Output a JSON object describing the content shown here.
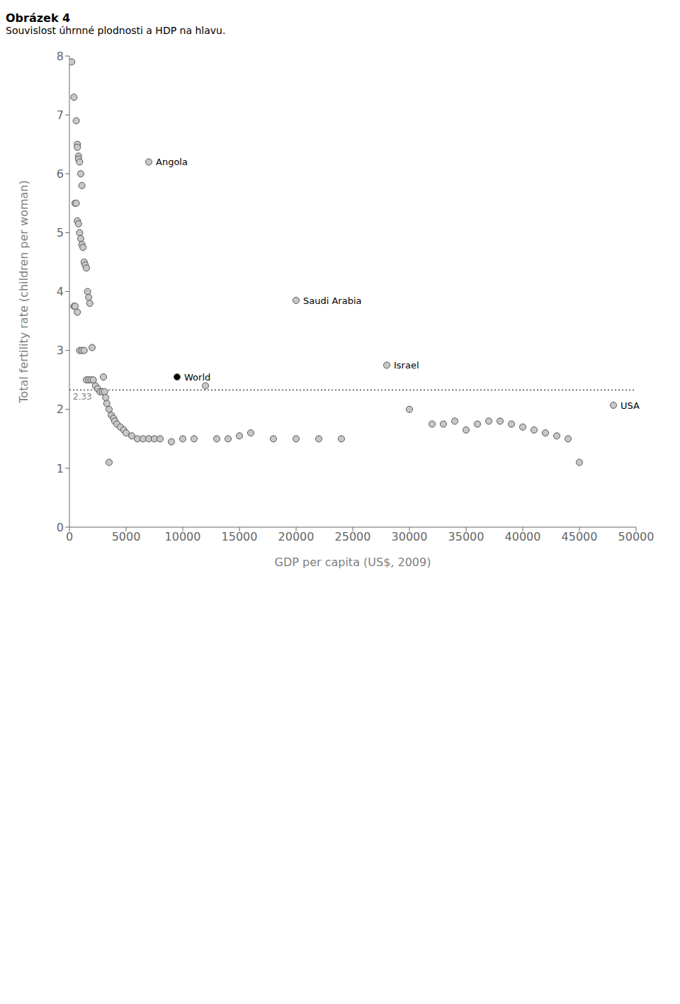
{
  "chart_data": {
    "type": "scatter",
    "title": "Obrázek 4",
    "subtitle": "Souvislost úhrnné plodnosti a HDP na hlavu.",
    "x_label": "GDP per capita (US$, 2009)",
    "y_label": "Total fertility rate (children per woman)",
    "xlim": [
      0,
      50000
    ],
    "ylim": [
      0,
      8
    ],
    "xticks": [
      0,
      5000,
      10000,
      15000,
      20000,
      25000,
      30000,
      35000,
      40000,
      45000,
      50000
    ],
    "yticks": [
      0,
      1,
      2,
      3,
      4,
      5,
      6,
      7,
      8
    ],
    "grid": false,
    "series": [
      {
        "color": "#c8c8c8",
        "points": [
          [
            200,
            7.9
          ],
          [
            400,
            7.3
          ],
          [
            600,
            6.9
          ],
          [
            700,
            6.5
          ],
          [
            700,
            6.45
          ],
          [
            800,
            6.3
          ],
          [
            800,
            6.25
          ],
          [
            900,
            6.2
          ],
          [
            1000,
            6.0
          ],
          [
            1100,
            5.8
          ],
          [
            500,
            5.5
          ],
          [
            600,
            5.5
          ],
          [
            700,
            5.2
          ],
          [
            800,
            5.15
          ],
          [
            900,
            5.0
          ],
          [
            1000,
            4.9
          ],
          [
            1100,
            4.8
          ],
          [
            1200,
            4.75
          ],
          [
            1300,
            4.5
          ],
          [
            1400,
            4.45
          ],
          [
            1500,
            4.4
          ],
          [
            1600,
            4.0
          ],
          [
            1700,
            3.9
          ],
          [
            1800,
            3.8
          ],
          [
            400,
            3.75
          ],
          [
            500,
            3.75
          ],
          [
            700,
            3.65
          ],
          [
            900,
            3.0
          ],
          [
            1100,
            3.0
          ],
          [
            1300,
            3.0
          ],
          [
            1500,
            2.5
          ],
          [
            1700,
            2.5
          ],
          [
            1900,
            2.5
          ],
          [
            2100,
            2.5
          ],
          [
            2300,
            2.4
          ],
          [
            2500,
            2.35
          ],
          [
            2700,
            2.3
          ],
          [
            2900,
            2.3
          ],
          [
            3000,
            2.55
          ],
          [
            3100,
            2.3
          ],
          [
            3200,
            2.2
          ],
          [
            3300,
            2.1
          ],
          [
            3500,
            2.0
          ],
          [
            3700,
            1.9
          ],
          [
            3900,
            1.85
          ],
          [
            4000,
            1.8
          ],
          [
            4200,
            1.75
          ],
          [
            4500,
            1.7
          ],
          [
            4800,
            1.65
          ],
          [
            5000,
            1.6
          ],
          [
            5500,
            1.55
          ],
          [
            6000,
            1.5
          ],
          [
            6500,
            1.5
          ],
          [
            7000,
            1.5
          ],
          [
            7500,
            1.5
          ],
          [
            8000,
            1.5
          ],
          [
            9000,
            1.45
          ],
          [
            10000,
            1.5
          ],
          [
            11000,
            1.5
          ],
          [
            13000,
            1.5
          ],
          [
            14000,
            1.5
          ],
          [
            15000,
            1.55
          ],
          [
            16000,
            1.6
          ],
          [
            18000,
            1.5
          ],
          [
            20000,
            1.5
          ],
          [
            22000,
            1.5
          ],
          [
            24000,
            1.5
          ],
          [
            30000,
            2.0
          ],
          [
            32000,
            1.75
          ],
          [
            33000,
            1.75
          ],
          [
            34000,
            1.8
          ],
          [
            35000,
            1.65
          ],
          [
            36000,
            1.75
          ],
          [
            37000,
            1.8
          ],
          [
            38000,
            1.8
          ],
          [
            39000,
            1.75
          ],
          [
            40000,
            1.7
          ],
          [
            41000,
            1.65
          ],
          [
            42000,
            1.6
          ],
          [
            43000,
            1.55
          ],
          [
            44000,
            1.5
          ],
          [
            45000,
            1.1
          ],
          [
            2000,
            3.05
          ],
          [
            12000,
            2.4
          ],
          [
            3500,
            1.1
          ],
          [
            7000,
            6.2
          ],
          [
            20000,
            3.85
          ],
          [
            28000,
            2.75
          ],
          [
            48000,
            2.07
          ]
        ]
      },
      {
        "color": "#000000",
        "points": [
          [
            9500,
            2.55
          ]
        ]
      }
    ],
    "annotations": [
      {
        "text": "Angola",
        "x": 7000,
        "y": 6.2
      },
      {
        "text": "Saudi Arabia",
        "x": 20000,
        "y": 3.85
      },
      {
        "text": "Israel",
        "x": 28000,
        "y": 2.75
      },
      {
        "text": "USA",
        "x": 48000,
        "y": 2.07
      },
      {
        "text": "World",
        "x": 9500,
        "y": 2.55
      }
    ],
    "reference_line": {
      "y": 2.33,
      "label": "2.33",
      "line_style": "dotted"
    }
  }
}
